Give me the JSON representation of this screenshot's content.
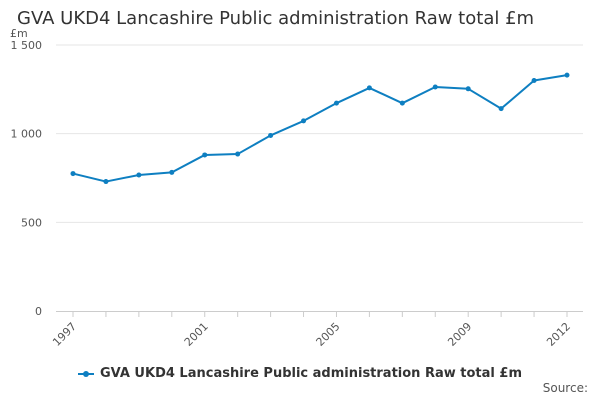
{
  "chart_data": {
    "type": "line",
    "title": "GVA UKD4 Lancashire Public administration Raw total £m",
    "unit": "£m",
    "xlabel": "",
    "ylabel": "£m",
    "ylim": [
      0,
      1500
    ],
    "yticks": [
      0,
      500,
      1000,
      1500
    ],
    "ytick_labels": [
      "0",
      "500",
      "1 000",
      "1 500"
    ],
    "x": [
      1997,
      1998,
      1999,
      2000,
      2001,
      2002,
      2003,
      2004,
      2005,
      2006,
      2007,
      2008,
      2009,
      2010,
      2011,
      2012
    ],
    "xtick_labels": [
      "1997",
      "2001",
      "2005",
      "2009",
      "2012"
    ],
    "series": [
      {
        "name": "GVA UKD4 Lancashire Public administration Raw total £m",
        "color": "#0e7fc1",
        "values": [
          775,
          730,
          767,
          782,
          880,
          885,
          990,
          1072,
          1172,
          1258,
          1172,
          1263,
          1253,
          1141,
          1300,
          1330
        ]
      }
    ],
    "legend": "bottom-center",
    "source_label": "Source:"
  }
}
